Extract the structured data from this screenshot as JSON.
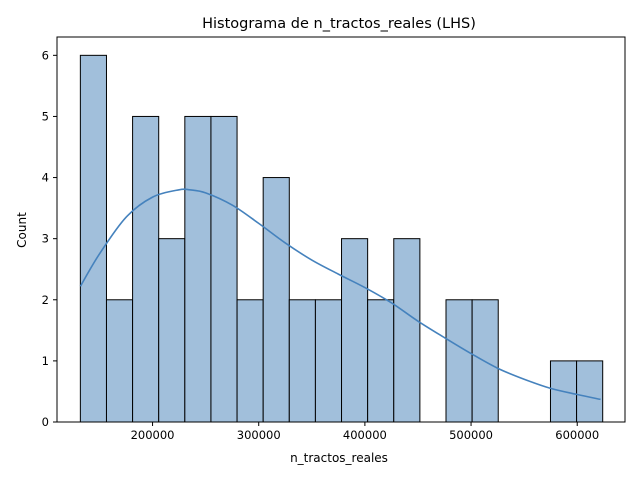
{
  "chart_data": {
    "type": "bar",
    "title": "Histograma de n_tractos_reales (LHS)",
    "xlabel": "n_tractos_reales",
    "ylabel": "Count",
    "xlim": [
      110000,
      645000
    ],
    "ylim": [
      0,
      6.3
    ],
    "x_ticks": [
      200000,
      300000,
      400000,
      500000,
      600000
    ],
    "y_ticks": [
      0,
      1,
      2,
      3,
      4,
      5,
      6
    ],
    "x_tick_labels": [
      "200000",
      "300000",
      "400000",
      "500000",
      "600000"
    ],
    "y_tick_labels": [
      "0",
      "1",
      "2",
      "3",
      "4",
      "5",
      "6"
    ],
    "bin_start": 132000,
    "bin_width": 24600,
    "counts": [
      6,
      2,
      5,
      3,
      5,
      5,
      2,
      4,
      2,
      2,
      3,
      2,
      3,
      0,
      2,
      2,
      0,
      0,
      1,
      1
    ],
    "kde": {
      "x": [
        132000,
        150000,
        175000,
        200000,
        225000,
        235000,
        250000,
        275000,
        300000,
        325000,
        350000,
        375000,
        400000,
        425000,
        450000,
        475000,
        500000,
        525000,
        550000,
        575000,
        600000,
        622000
      ],
      "y": [
        2.22,
        2.75,
        3.35,
        3.68,
        3.8,
        3.8,
        3.75,
        3.55,
        3.25,
        2.93,
        2.65,
        2.42,
        2.2,
        1.95,
        1.65,
        1.38,
        1.12,
        0.88,
        0.7,
        0.55,
        0.45,
        0.37
      ]
    },
    "colors": {
      "bar_fill": "#a1bfdb",
      "bar_edge": "#000000",
      "kde_line": "#4582bd",
      "axes": "#000000"
    },
    "grid": false,
    "legend": "none"
  }
}
